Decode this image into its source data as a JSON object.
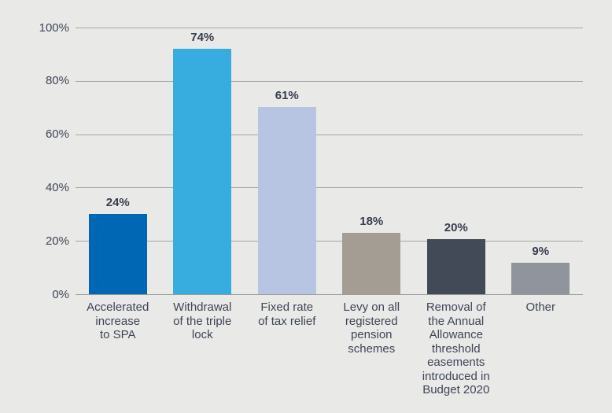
{
  "chart_data": {
    "type": "bar",
    "title": "",
    "xlabel": "",
    "ylabel": "",
    "categories": [
      "Accelerated increase to SPA",
      "Withdrawal of the triple lock",
      "Fixed rate of tax relief",
      "Levy on all registered pension schemes",
      "Removal of the Annual Allowance threshold easements introduced in Budget 2020",
      "Other"
    ],
    "categories_display": [
      "Accelerated\nincrease\nto SPA",
      "Withdrawal\nof the triple\nlock",
      "Fixed rate\nof tax relief",
      "Levy on all\nregistered\npension\nschemes",
      "Removal of\nthe Annual\nAllowance\nthreshold\neasements\nintroduced in\nBudget 2020",
      "Other"
    ],
    "values": [
      24,
      74,
      61,
      18,
      20,
      9
    ],
    "value_labels": [
      "24%",
      "74%",
      "61%",
      "18%",
      "20%",
      "9%"
    ],
    "bar_colors": [
      "#0067b4",
      "#36acdf",
      "#b8c5e2",
      "#a49d93",
      "#424a58",
      "#8f949d"
    ],
    "drawn_heights_pct": [
      30,
      92,
      70.3,
      23,
      20.6,
      11.7
    ],
    "y_ticks": [
      {
        "label": "100%",
        "value": 100
      },
      {
        "label": "80%",
        "value": 80
      },
      {
        "label": "60%",
        "value": 60
      },
      {
        "label": "40%",
        "value": 40
      },
      {
        "label": "20%",
        "value": 20
      },
      {
        "label": "0%",
        "value": 0
      }
    ],
    "ylim": [
      0,
      100
    ],
    "grid": true,
    "legend": false,
    "style": {
      "background": "#e9e9e7",
      "grid_color": "#a5a5a3",
      "axis_color": "#9b9b99",
      "tick_text_color": "#3e4555",
      "value_text_color": "#353c4d"
    }
  }
}
